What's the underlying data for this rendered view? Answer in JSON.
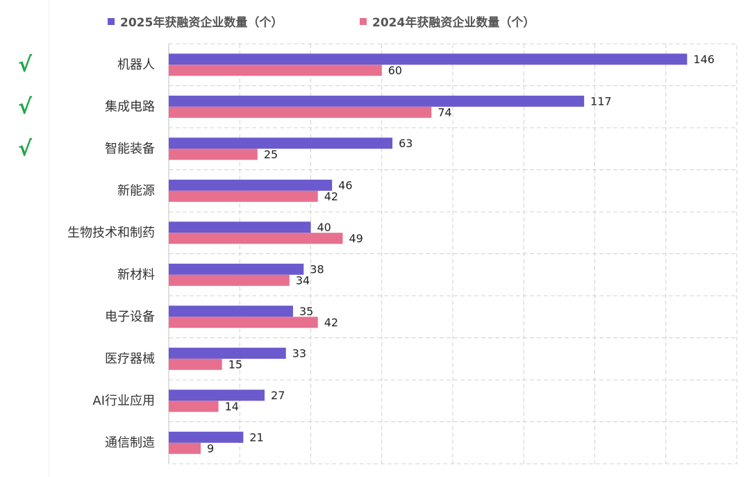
{
  "legend": [
    {
      "name": "2025年获融资企业数量（个）",
      "color": "#6a5acd"
    },
    {
      "name": "2024年获融资企业数量（个）",
      "color": "#e8708f"
    }
  ],
  "check_glyph": "√",
  "checked": [
    true,
    true,
    true,
    false,
    false,
    false,
    false,
    false,
    false,
    false
  ],
  "chart_data": {
    "type": "bar",
    "orientation": "horizontal",
    "categories": [
      "机器人",
      "集成电路",
      "智能装备",
      "新能源",
      "生物技术和制药",
      "新材料",
      "电子设备",
      "医疗器械",
      "AI行业应用",
      "通信制造"
    ],
    "series": [
      {
        "name": "2025年获融资企业数量（个）",
        "color": "#6a5acd",
        "values": [
          146,
          117,
          63,
          46,
          40,
          38,
          35,
          33,
          27,
          21
        ]
      },
      {
        "name": "2024年获融资企业数量（个）",
        "color": "#e8708f",
        "values": [
          60,
          74,
          25,
          42,
          49,
          34,
          42,
          15,
          14,
          9
        ]
      }
    ],
    "xlim": [
      0,
      160
    ],
    "grid": true,
    "legend_position": "top"
  }
}
